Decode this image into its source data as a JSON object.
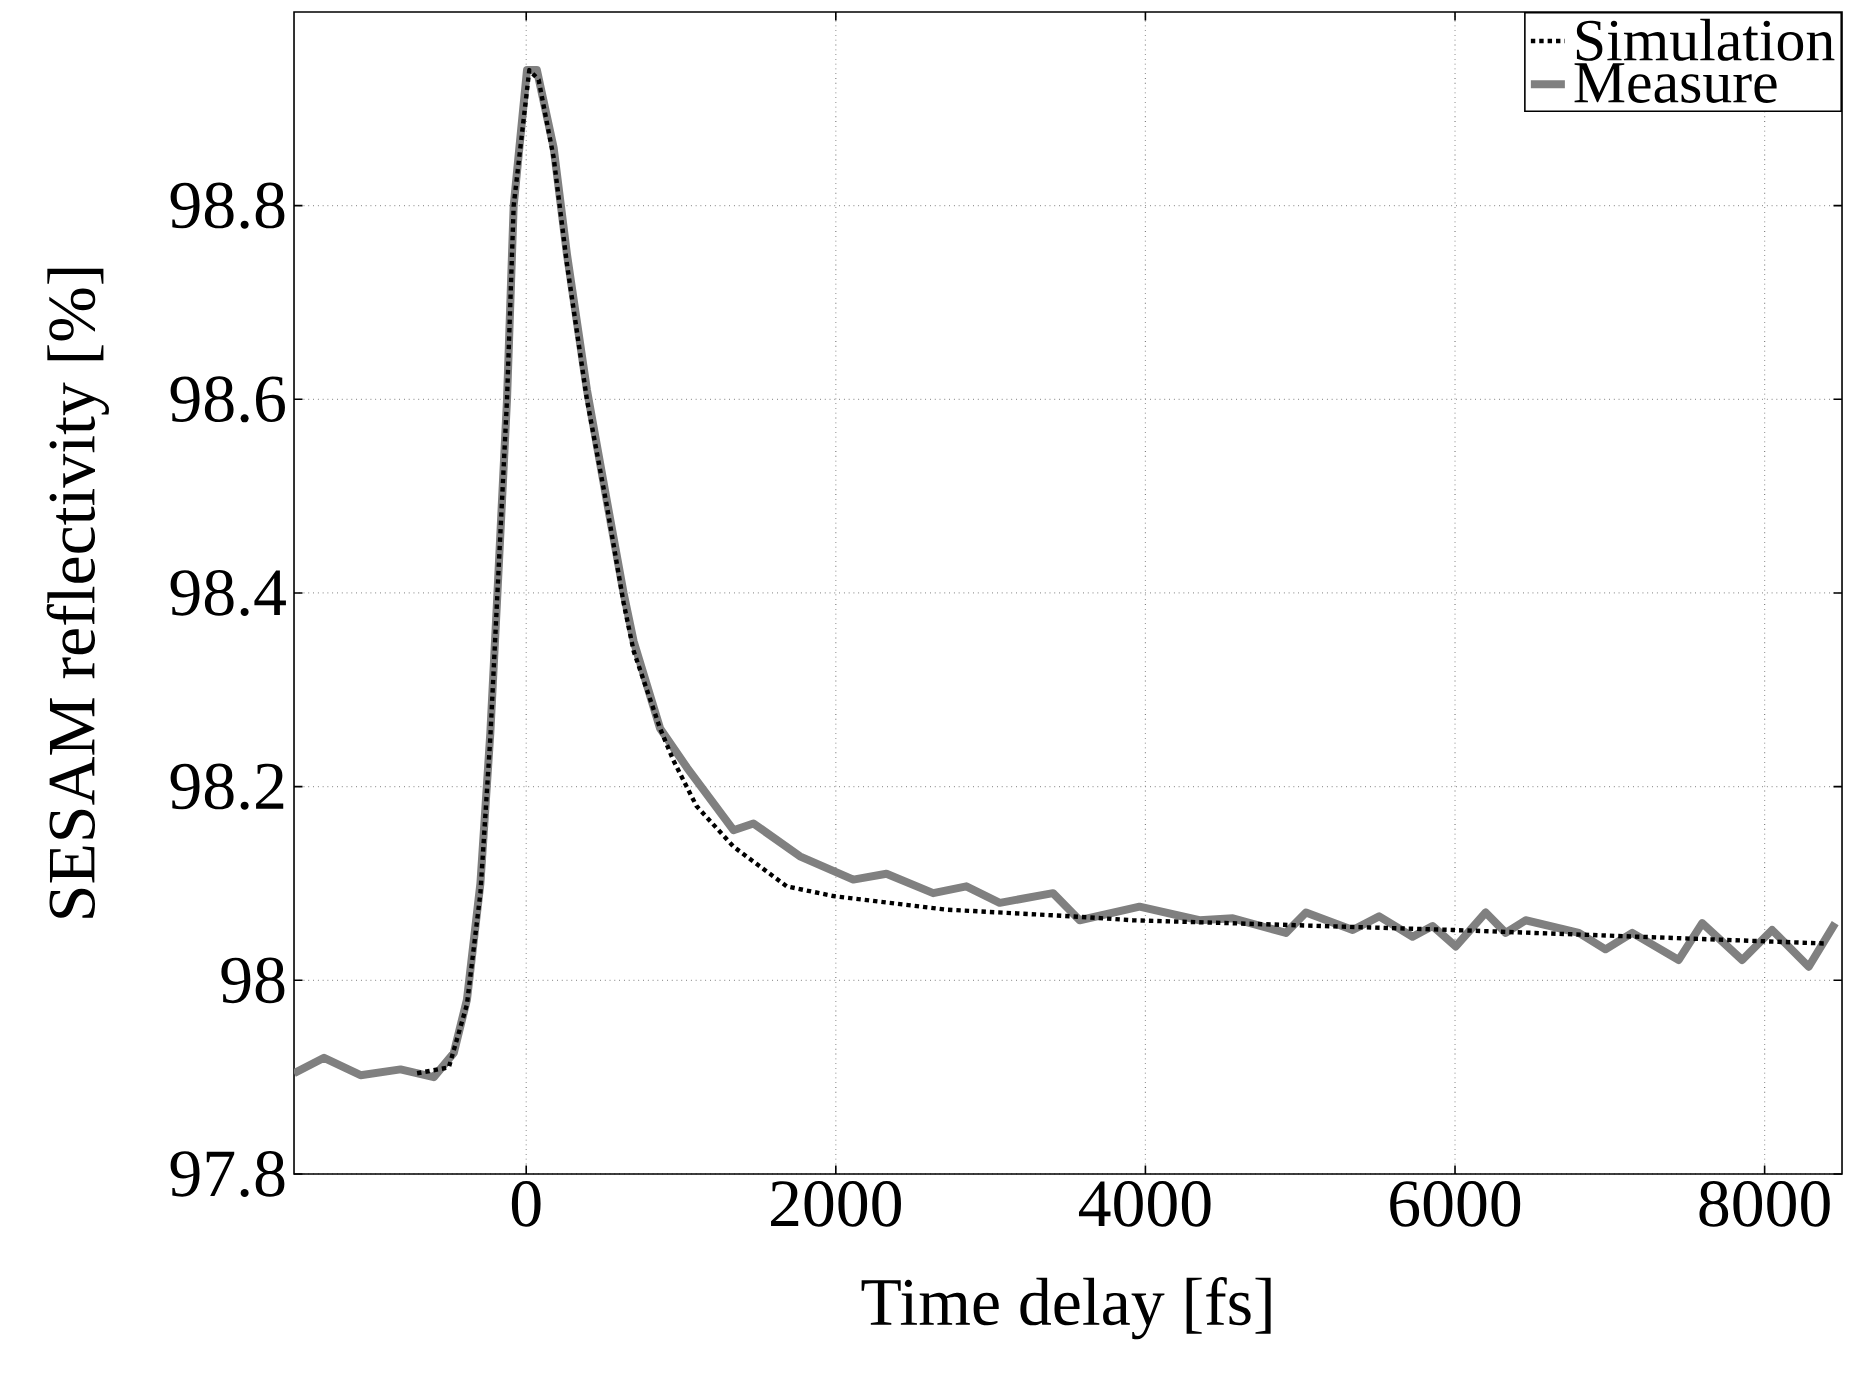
{
  "chart_data": {
    "type": "line",
    "xlabel": "Time delay [fs]",
    "ylabel": "SESAM reflectivity [%]",
    "xlim": [
      -1500,
      8500
    ],
    "ylim": [
      97.8,
      99.0
    ],
    "xticks": [
      0,
      2000,
      4000,
      6000,
      8000
    ],
    "yticks": [
      97.8,
      98,
      98.2,
      98.4,
      98.6,
      98.8
    ],
    "grid": true,
    "legend": "top right",
    "series": [
      {
        "name": "Simulation",
        "color": "#000000",
        "line_style": "dotted",
        "x": [
          -705,
          -500,
          -383,
          -296,
          -232,
          -189,
          -124,
          -81,
          20,
          80,
          177,
          263,
          392,
          521,
          629,
          694,
          865,
          951,
          1100,
          1339,
          1683,
          1984,
          2714,
          3532,
          3919,
          5984,
          8392
        ],
        "values": [
          97.904,
          97.91,
          97.975,
          98.09,
          98.25,
          98.39,
          98.6,
          98.8,
          98.94,
          98.93,
          98.85,
          98.74,
          98.6,
          98.49,
          98.39,
          98.34,
          98.26,
          98.227,
          98.18,
          98.138,
          98.097,
          98.087,
          98.073,
          98.066,
          98.062,
          98.052,
          98.038
        ]
      },
      {
        "name": "Measure",
        "color": "#808080",
        "line_style": "solid",
        "x": [
          -1500,
          -1306,
          -1070,
          -812,
          -597,
          -468,
          -383,
          -296,
          -232,
          -189,
          -124,
          -81,
          5,
          69,
          177,
          263,
          392,
          521,
          629,
          694,
          865,
          1037,
          1339,
          1468,
          1768,
          2113,
          2327,
          2629,
          2843,
          3059,
          3403,
          3575,
          3962,
          4349,
          4565,
          4908,
          5037,
          5339,
          5510,
          5726,
          5855,
          6005,
          6198,
          6327,
          6456,
          6800,
          6972,
          7145,
          7445,
          7597,
          7855,
          8048,
          8285,
          8456
        ],
        "values": [
          97.904,
          97.92,
          97.902,
          97.908,
          97.9,
          97.925,
          97.98,
          98.1,
          98.255,
          98.39,
          98.6,
          98.8,
          98.94,
          98.94,
          98.86,
          98.75,
          98.61,
          98.495,
          98.4,
          98.35,
          98.26,
          98.22,
          98.155,
          98.162,
          98.128,
          98.104,
          98.11,
          98.09,
          98.097,
          98.08,
          98.09,
          98.062,
          98.076,
          98.062,
          98.064,
          98.049,
          98.07,
          98.052,
          98.066,
          98.045,
          98.056,
          98.035,
          98.07,
          98.049,
          98.062,
          98.049,
          98.032,
          98.049,
          98.021,
          98.059,
          98.021,
          98.052,
          98.014,
          98.059
        ]
      }
    ]
  }
}
